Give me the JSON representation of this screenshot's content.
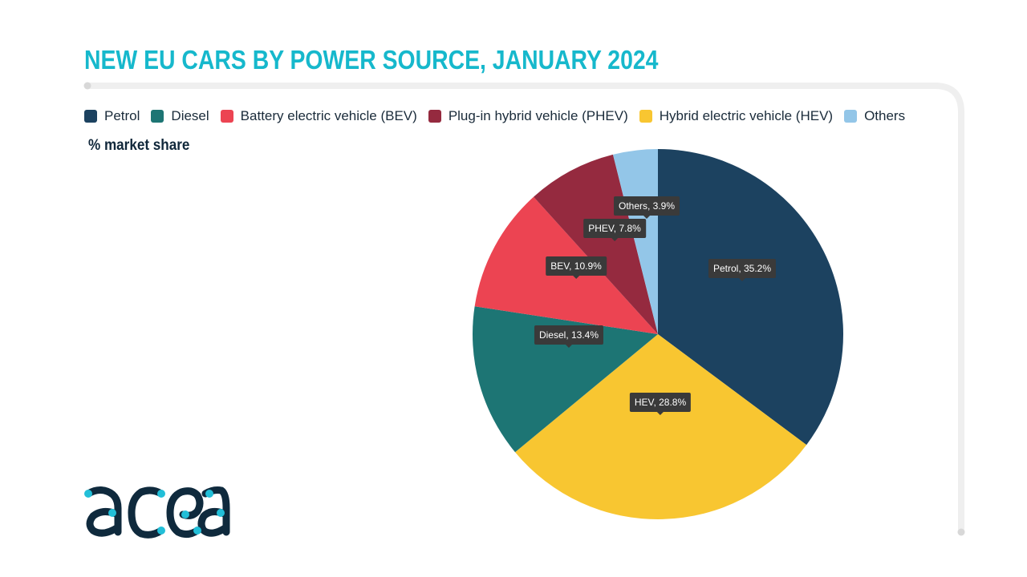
{
  "title": "NEW EU CARS BY POWER SOURCE, JANUARY 2024",
  "subtitle": "% market share",
  "logo_text": "acea",
  "chart_data": {
    "type": "pie",
    "title": "NEW EU CARS BY POWER SOURCE, JANUARY 2024",
    "unit": "% market share",
    "legend_position": "top",
    "legend": [
      "Petrol",
      "Diesel",
      "Battery electric vehicle (BEV)",
      "Plug-in hybrid vehicle (PHEV)",
      "Hybrid electric vehicle (HEV)",
      "Others"
    ],
    "slices": [
      {
        "name": "Petrol",
        "value": 35.2,
        "label": "Petrol, 35.2%",
        "color": "#1c4260"
      },
      {
        "name": "HEV",
        "value": 28.8,
        "label": "HEV, 28.8%",
        "color": "#f8c631"
      },
      {
        "name": "Diesel",
        "value": 13.4,
        "label": "Diesel, 13.4%",
        "color": "#1d7574"
      },
      {
        "name": "BEV",
        "value": 10.9,
        "label": "BEV, 10.9%",
        "color": "#ec4452"
      },
      {
        "name": "PHEV",
        "value": 7.8,
        "label": "PHEV, 7.8%",
        "color": "#952a3f"
      },
      {
        "name": "Others",
        "value": 3.9,
        "label": "Others, 3.9%",
        "color": "#93c6e8"
      }
    ],
    "legend_colors": [
      "#1c4260",
      "#1d7574",
      "#ec4452",
      "#952a3f",
      "#f8c631",
      "#93c6e8"
    ]
  }
}
